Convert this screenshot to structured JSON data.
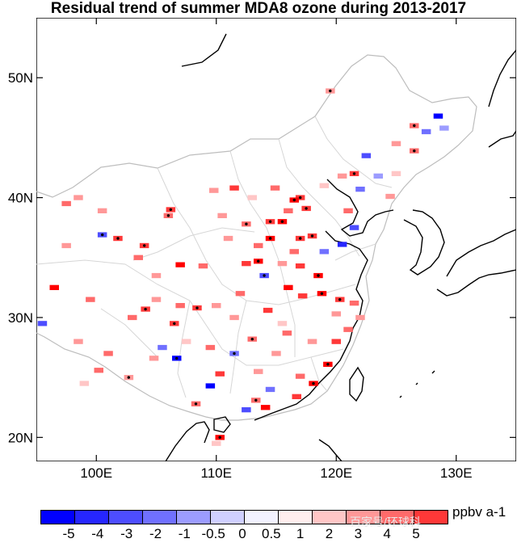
{
  "title": "Residual trend of summer MDA8 ozone during 2013-2017",
  "lon_ticks": [
    {
      "value": 100,
      "label": "100E"
    },
    {
      "value": 110,
      "label": "110E"
    },
    {
      "value": 120,
      "label": "120E"
    },
    {
      "value": 130,
      "label": "130E"
    }
  ],
  "lat_ticks": [
    {
      "value": 20,
      "label": "20N"
    },
    {
      "value": 30,
      "label": "30N"
    },
    {
      "value": 40,
      "label": "40N"
    },
    {
      "value": 50,
      "label": "50N"
    }
  ],
  "extent": {
    "lon_min": 95,
    "lon_max": 135,
    "lat_min": 18,
    "lat_max": 55
  },
  "colorbar": {
    "unit": "ppbv a-1",
    "labels": [
      "-5",
      "-4",
      "-3",
      "-2",
      "-1",
      "-0.5",
      "0",
      "0.5",
      "1",
      "2",
      "3",
      "4",
      "5"
    ],
    "colors": [
      "#0000ff",
      "#2626ff",
      "#4d4dff",
      "#7070ff",
      "#9c9cff",
      "#cfcfff",
      "#f2f2ff",
      "#ffeeee",
      "#ffc6c6",
      "#ff9898",
      "#ff6a6a",
      "#ff3838",
      "#ff0000"
    ]
  },
  "watermark": "百家号/环球科",
  "chart_data": {
    "type": "map-grid",
    "title": "Residual trend of summer MDA8 ozone during 2013-2017",
    "units": "ppbv a-1",
    "cell_size_deg": 0.5,
    "cells": [
      {
        "lon": 119.5,
        "lat": 48.9,
        "v": 2,
        "sig": true
      },
      {
        "lon": 126.5,
        "lat": 46.0,
        "v": 3,
        "sig": true
      },
      {
        "lon": 127.5,
        "lat": 45.5,
        "v": -2
      },
      {
        "lon": 128.5,
        "lat": 46.8,
        "v": -5
      },
      {
        "lon": 129.0,
        "lat": 45.8,
        "v": -1
      },
      {
        "lon": 125.0,
        "lat": 44.5,
        "v": 2
      },
      {
        "lon": 126.5,
        "lat": 43.9,
        "v": 3,
        "sig": true
      },
      {
        "lon": 122.5,
        "lat": 43.5,
        "v": -3
      },
      {
        "lon": 121.5,
        "lat": 42.0,
        "v": 4,
        "sig": true
      },
      {
        "lon": 120.5,
        "lat": 41.8,
        "v": 2
      },
      {
        "lon": 119.0,
        "lat": 41.0,
        "v": 1
      },
      {
        "lon": 117.0,
        "lat": 40.0,
        "v": 4,
        "sig": true
      },
      {
        "lon": 116.5,
        "lat": 39.8,
        "v": 5,
        "sig": true
      },
      {
        "lon": 117.5,
        "lat": 39.1,
        "v": 4,
        "sig": true
      },
      {
        "lon": 116.0,
        "lat": 38.9,
        "v": 3
      },
      {
        "lon": 115.5,
        "lat": 38.0,
        "v": 5,
        "sig": true
      },
      {
        "lon": 114.5,
        "lat": 38.0,
        "v": 4,
        "sig": true
      },
      {
        "lon": 114.5,
        "lat": 36.6,
        "v": 5,
        "sig": true
      },
      {
        "lon": 113.5,
        "lat": 36.0,
        "v": 3
      },
      {
        "lon": 112.5,
        "lat": 37.8,
        "v": 3,
        "sig": true
      },
      {
        "lon": 111.0,
        "lat": 36.6,
        "v": 2
      },
      {
        "lon": 110.5,
        "lat": 38.5,
        "v": 2
      },
      {
        "lon": 118.0,
        "lat": 36.8,
        "v": 4,
        "sig": true
      },
      {
        "lon": 119.0,
        "lat": 35.5,
        "v": -2
      },
      {
        "lon": 120.5,
        "lat": 36.1,
        "v": -4
      },
      {
        "lon": 121.5,
        "lat": 37.5,
        "v": -3
      },
      {
        "lon": 117.0,
        "lat": 36.6,
        "v": 4,
        "sig": true
      },
      {
        "lon": 116.5,
        "lat": 35.5,
        "v": 3
      },
      {
        "lon": 117.0,
        "lat": 34.3,
        "v": 4
      },
      {
        "lon": 115.5,
        "lat": 34.5,
        "v": 2
      },
      {
        "lon": 113.5,
        "lat": 34.7,
        "v": 5,
        "sig": true
      },
      {
        "lon": 112.5,
        "lat": 34.5,
        "v": 4
      },
      {
        "lon": 114.0,
        "lat": 33.5,
        "v": -3,
        "sig": true
      },
      {
        "lon": 108.9,
        "lat": 34.3,
        "v": 3
      },
      {
        "lon": 107.0,
        "lat": 34.4,
        "v": 5
      },
      {
        "lon": 104.0,
        "lat": 36.0,
        "v": 4,
        "sig": true
      },
      {
        "lon": 101.8,
        "lat": 36.6,
        "v": 4,
        "sig": true
      },
      {
        "lon": 100.5,
        "lat": 36.9,
        "v": -3,
        "sig": true
      },
      {
        "lon": 97.5,
        "lat": 39.5,
        "v": 3
      },
      {
        "lon": 98.5,
        "lat": 40.0,
        "v": 2
      },
      {
        "lon": 100.5,
        "lat": 38.9,
        "v": 2
      },
      {
        "lon": 106.0,
        "lat": 38.5,
        "v": 3,
        "sig": true
      },
      {
        "lon": 106.2,
        "lat": 39.0,
        "v": 4,
        "sig": true
      },
      {
        "lon": 111.5,
        "lat": 40.8,
        "v": 4
      },
      {
        "lon": 109.8,
        "lat": 40.6,
        "v": 2
      },
      {
        "lon": 113.0,
        "lat": 40.0,
        "v": 1
      },
      {
        "lon": 114.9,
        "lat": 40.8,
        "v": 3
      },
      {
        "lon": 118.8,
        "lat": 32.0,
        "v": 5,
        "sig": true
      },
      {
        "lon": 120.3,
        "lat": 31.5,
        "v": 4,
        "sig": true
      },
      {
        "lon": 121.5,
        "lat": 31.2,
        "v": 3
      },
      {
        "lon": 120.0,
        "lat": 30.3,
        "v": 2
      },
      {
        "lon": 117.2,
        "lat": 31.8,
        "v": 4
      },
      {
        "lon": 116.0,
        "lat": 32.5,
        "v": 5
      },
      {
        "lon": 118.5,
        "lat": 33.5,
        "v": 5,
        "sig": true
      },
      {
        "lon": 114.3,
        "lat": 30.6,
        "v": 4
      },
      {
        "lon": 113.0,
        "lat": 28.2,
        "v": 3,
        "sig": true
      },
      {
        "lon": 115.9,
        "lat": 28.7,
        "v": 3
      },
      {
        "lon": 111.5,
        "lat": 30.0,
        "v": 2
      },
      {
        "lon": 112.0,
        "lat": 32.0,
        "v": 3
      },
      {
        "lon": 110.0,
        "lat": 31.0,
        "v": 2
      },
      {
        "lon": 106.5,
        "lat": 29.5,
        "v": 4,
        "sig": true
      },
      {
        "lon": 104.1,
        "lat": 30.7,
        "v": 4,
        "sig": true
      },
      {
        "lon": 103.0,
        "lat": 30.0,
        "v": 3
      },
      {
        "lon": 105.0,
        "lat": 31.5,
        "v": 2
      },
      {
        "lon": 107.0,
        "lat": 31.0,
        "v": 3
      },
      {
        "lon": 108.4,
        "lat": 30.8,
        "v": 4,
        "sig": true
      },
      {
        "lon": 99.5,
        "lat": 31.5,
        "v": 3
      },
      {
        "lon": 96.5,
        "lat": 32.5,
        "v": 5
      },
      {
        "lon": 95.5,
        "lat": 29.5,
        "v": -3
      },
      {
        "lon": 106.7,
        "lat": 26.6,
        "v": -5,
        "sig": true
      },
      {
        "lon": 104.8,
        "lat": 26.6,
        "v": 2
      },
      {
        "lon": 102.7,
        "lat": 25.0,
        "v": 2,
        "sig": true
      },
      {
        "lon": 100.2,
        "lat": 25.6,
        "v": 3
      },
      {
        "lon": 99.0,
        "lat": 24.5,
        "v": 1
      },
      {
        "lon": 110.3,
        "lat": 25.3,
        "v": 4
      },
      {
        "lon": 108.3,
        "lat": 22.8,
        "v": 3,
        "sig": true
      },
      {
        "lon": 113.3,
        "lat": 23.1,
        "v": 3,
        "sig": true
      },
      {
        "lon": 114.1,
        "lat": 22.5,
        "v": 5
      },
      {
        "lon": 112.5,
        "lat": 22.3,
        "v": -3
      },
      {
        "lon": 116.7,
        "lat": 23.4,
        "v": 4
      },
      {
        "lon": 118.1,
        "lat": 24.5,
        "v": 5,
        "sig": true
      },
      {
        "lon": 119.3,
        "lat": 26.1,
        "v": 5,
        "sig": true
      },
      {
        "lon": 117.0,
        "lat": 25.1,
        "v": 3
      },
      {
        "lon": 115.0,
        "lat": 27.0,
        "v": 2
      },
      {
        "lon": 113.5,
        "lat": 25.5,
        "v": 2
      },
      {
        "lon": 111.5,
        "lat": 27.0,
        "v": -2,
        "sig": true
      },
      {
        "lon": 109.5,
        "lat": 27.5,
        "v": 3
      },
      {
        "lon": 107.5,
        "lat": 28.0,
        "v": 1
      },
      {
        "lon": 105.5,
        "lat": 27.5,
        "v": -2
      },
      {
        "lon": 109.5,
        "lat": 24.3,
        "v": -5
      },
      {
        "lon": 121.0,
        "lat": 29.0,
        "v": 3
      },
      {
        "lon": 120.0,
        "lat": 28.0,
        "v": 4
      },
      {
        "lon": 122.0,
        "lat": 30.0,
        "v": 2
      },
      {
        "lon": 110.3,
        "lat": 20.0,
        "v": 5,
        "sig": true
      },
      {
        "lon": 110.0,
        "lat": 19.5,
        "v": 1
      },
      {
        "lon": 97.5,
        "lat": 36.0,
        "v": 2
      },
      {
        "lon": 103.5,
        "lat": 35.0,
        "v": 3
      },
      {
        "lon": 105.0,
        "lat": 33.5,
        "v": 2
      },
      {
        "lon": 101.0,
        "lat": 27.0,
        "v": 3
      },
      {
        "lon": 98.5,
        "lat": 28.0,
        "v": 2
      },
      {
        "lon": 114.5,
        "lat": 24.0,
        "v": -2
      },
      {
        "lon": 115.5,
        "lat": 29.5,
        "v": 1
      },
      {
        "lon": 118.0,
        "lat": 28.0,
        "v": 2
      },
      {
        "lon": 123.5,
        "lat": 41.8,
        "v": -1
      },
      {
        "lon": 124.5,
        "lat": 40.1,
        "v": 2
      },
      {
        "lon": 122.0,
        "lat": 40.7,
        "v": -2
      },
      {
        "lon": 125.0,
        "lat": 42.0,
        "v": 1
      },
      {
        "lon": 121.0,
        "lat": 38.9,
        "v": 3
      }
    ]
  }
}
